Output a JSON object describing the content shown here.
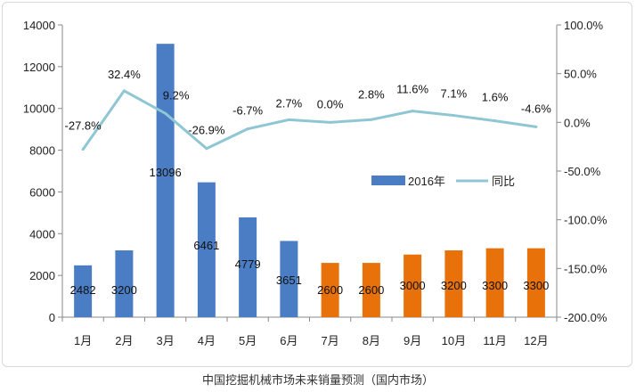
{
  "chart_data": {
    "type": "bar",
    "title": "",
    "caption": "中国挖掘机械市场未来销量预测（国内市场）",
    "categories": [
      "1月",
      "2月",
      "3月",
      "4月",
      "5月",
      "6月",
      "7月",
      "8月",
      "9月",
      "10月",
      "11月",
      "12月"
    ],
    "series": [
      {
        "name": "2016年",
        "type": "bar",
        "axis": "left",
        "values": [
          2482,
          3200,
          13096,
          6461,
          4779,
          3651,
          2600,
          2600,
          3000,
          3200,
          3300,
          3300
        ],
        "labels": [
          "2482",
          "3200",
          "13096",
          "6461",
          "4779",
          "3651",
          "2600",
          "2600",
          "3000",
          "3200",
          "3300",
          "3300"
        ],
        "forecast_from_index": 6,
        "color": "#4a7dc4",
        "forecast_color": "#e8710a"
      },
      {
        "name": "同比",
        "type": "line",
        "axis": "right",
        "values": [
          -27.8,
          32.4,
          9.2,
          -26.9,
          -6.7,
          2.7,
          0.0,
          2.8,
          11.6,
          7.1,
          1.6,
          -4.6
        ],
        "labels": [
          "-27.8%",
          "32.4%",
          "9.2%",
          "-26.9%",
          "-6.7%",
          "2.7%",
          "0.0%",
          "2.8%",
          "11.6%",
          "7.1%",
          "1.6%",
          "-4.6%"
        ],
        "color": "#8fc6d4"
      }
    ],
    "left_axis": {
      "min": 0,
      "max": 14000,
      "ticks": [
        "0",
        "2000",
        "4000",
        "6000",
        "8000",
        "10000",
        "12000",
        "14000"
      ]
    },
    "right_axis": {
      "min": -200,
      "max": 100,
      "ticks": [
        "-200.0%",
        "-150.0%",
        "-100.0%",
        "-50.0%",
        "0.0%",
        "50.0%",
        "100.0%"
      ]
    },
    "legend": {
      "position": "right-middle",
      "bar_label": "2016年",
      "line_label": "同比"
    },
    "grid": false
  }
}
